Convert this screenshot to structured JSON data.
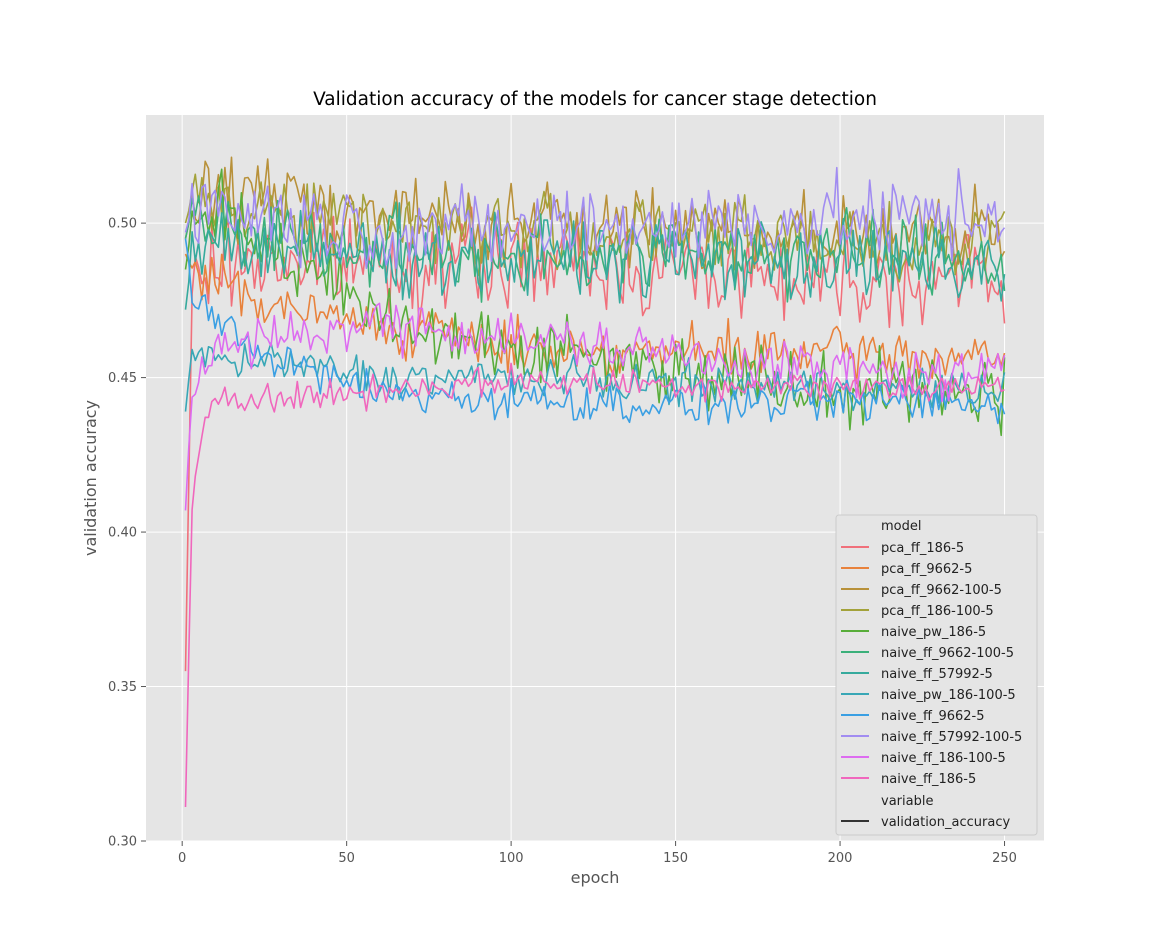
{
  "chart_data": {
    "type": "line",
    "title": "Validation accuracy of the models for cancer stage detection",
    "xlabel": "epoch",
    "ylabel": "validation accuracy",
    "xlim": [
      -11,
      262
    ],
    "ylim": [
      0.3,
      0.535
    ],
    "xticks": [
      0,
      50,
      100,
      150,
      200,
      250
    ],
    "yticks": [
      0.3,
      0.35,
      0.4,
      0.45,
      0.5
    ],
    "ytick_labels": [
      "0.30",
      "0.35",
      "0.40",
      "0.45",
      "0.50"
    ],
    "grid": true,
    "legend_placement": "lower-right",
    "legend_title": "model",
    "legend_style_title": "variable",
    "legend_style_entry": "validation_accuracy",
    "legend_style_color": "#333333",
    "noise_seed": 7,
    "x_step": 1,
    "series": [
      {
        "name": "pca_ff_186-5",
        "color": "#f0707b",
        "noise": 0.009,
        "x": [
          1,
          3,
          10,
          30,
          60,
          100,
          150,
          200,
          250
        ],
        "values": [
          0.355,
          0.478,
          0.487,
          0.488,
          0.487,
          0.487,
          0.485,
          0.483,
          0.482
        ]
      },
      {
        "name": "pca_ff_9662-5",
        "color": "#e8823c",
        "noise": 0.005,
        "x": [
          1,
          3,
          10,
          30,
          60,
          100,
          150,
          200,
          250
        ],
        "values": [
          0.49,
          0.485,
          0.482,
          0.472,
          0.467,
          0.46,
          0.458,
          0.458,
          0.456
        ]
      },
      {
        "name": "pca_ff_9662-100-5",
        "color": "#b8913a",
        "noise": 0.008,
        "x": [
          1,
          3,
          10,
          30,
          60,
          100,
          150,
          200,
          250
        ],
        "values": [
          0.495,
          0.505,
          0.51,
          0.508,
          0.503,
          0.499,
          0.499,
          0.497,
          0.495
        ]
      },
      {
        "name": "pca_ff_186-100-5",
        "color": "#a3a23a",
        "noise": 0.008,
        "x": [
          1,
          3,
          10,
          30,
          60,
          100,
          150,
          200,
          250
        ],
        "values": [
          0.5,
          0.508,
          0.508,
          0.505,
          0.5,
          0.497,
          0.496,
          0.495,
          0.493
        ]
      },
      {
        "name": "naive_pw_186-5",
        "color": "#58ad3a",
        "noise": 0.007,
        "x": [
          1,
          3,
          10,
          30,
          60,
          100,
          150,
          200,
          250
        ],
        "values": [
          0.485,
          0.5,
          0.505,
          0.49,
          0.47,
          0.46,
          0.453,
          0.447,
          0.446
        ]
      },
      {
        "name": "naive_ff_9662-100-5",
        "color": "#3bb07a",
        "noise": 0.008,
        "x": [
          1,
          3,
          10,
          30,
          60,
          100,
          150,
          200,
          250
        ],
        "values": [
          0.495,
          0.505,
          0.5,
          0.495,
          0.49,
          0.49,
          0.49,
          0.49,
          0.488
        ]
      },
      {
        "name": "naive_ff_57992-5",
        "color": "#36aa9d",
        "noise": 0.008,
        "x": [
          1,
          3,
          10,
          30,
          60,
          100,
          150,
          200,
          250
        ],
        "values": [
          0.472,
          0.49,
          0.495,
          0.49,
          0.49,
          0.489,
          0.489,
          0.487,
          0.485
        ]
      },
      {
        "name": "naive_pw_186-100-5",
        "color": "#38a7b6",
        "noise": 0.004,
        "x": [
          1,
          3,
          10,
          30,
          60,
          100,
          150,
          200,
          250
        ],
        "values": [
          0.439,
          0.46,
          0.455,
          0.455,
          0.45,
          0.45,
          0.448,
          0.447,
          0.445
        ]
      },
      {
        "name": "naive_ff_9662-5",
        "color": "#3a9fe3",
        "noise": 0.004,
        "x": [
          1,
          3,
          10,
          30,
          60,
          100,
          150,
          200,
          250
        ],
        "values": [
          0.495,
          0.48,
          0.468,
          0.455,
          0.445,
          0.443,
          0.441,
          0.442,
          0.442
        ]
      },
      {
        "name": "naive_ff_57992-100-5",
        "color": "#a18cf1",
        "noise": 0.008,
        "x": [
          1,
          3,
          10,
          30,
          60,
          100,
          150,
          200,
          250
        ],
        "values": [
          0.497,
          0.505,
          0.505,
          0.502,
          0.498,
          0.498,
          0.5,
          0.501,
          0.502
        ]
      },
      {
        "name": "naive_ff_186-100-5",
        "color": "#dd6cf0",
        "noise": 0.005,
        "x": [
          1,
          3,
          10,
          30,
          60,
          100,
          150,
          200,
          250
        ],
        "values": [
          0.407,
          0.448,
          0.458,
          0.463,
          0.468,
          0.463,
          0.458,
          0.452,
          0.45
        ]
      },
      {
        "name": "naive_ff_186-5",
        "color": "#f067bd",
        "noise": 0.003,
        "x": [
          1,
          3,
          6,
          10,
          30,
          60,
          100,
          150,
          200,
          250
        ],
        "values": [
          0.311,
          0.41,
          0.433,
          0.445,
          0.443,
          0.446,
          0.449,
          0.448,
          0.447,
          0.447
        ]
      }
    ]
  }
}
